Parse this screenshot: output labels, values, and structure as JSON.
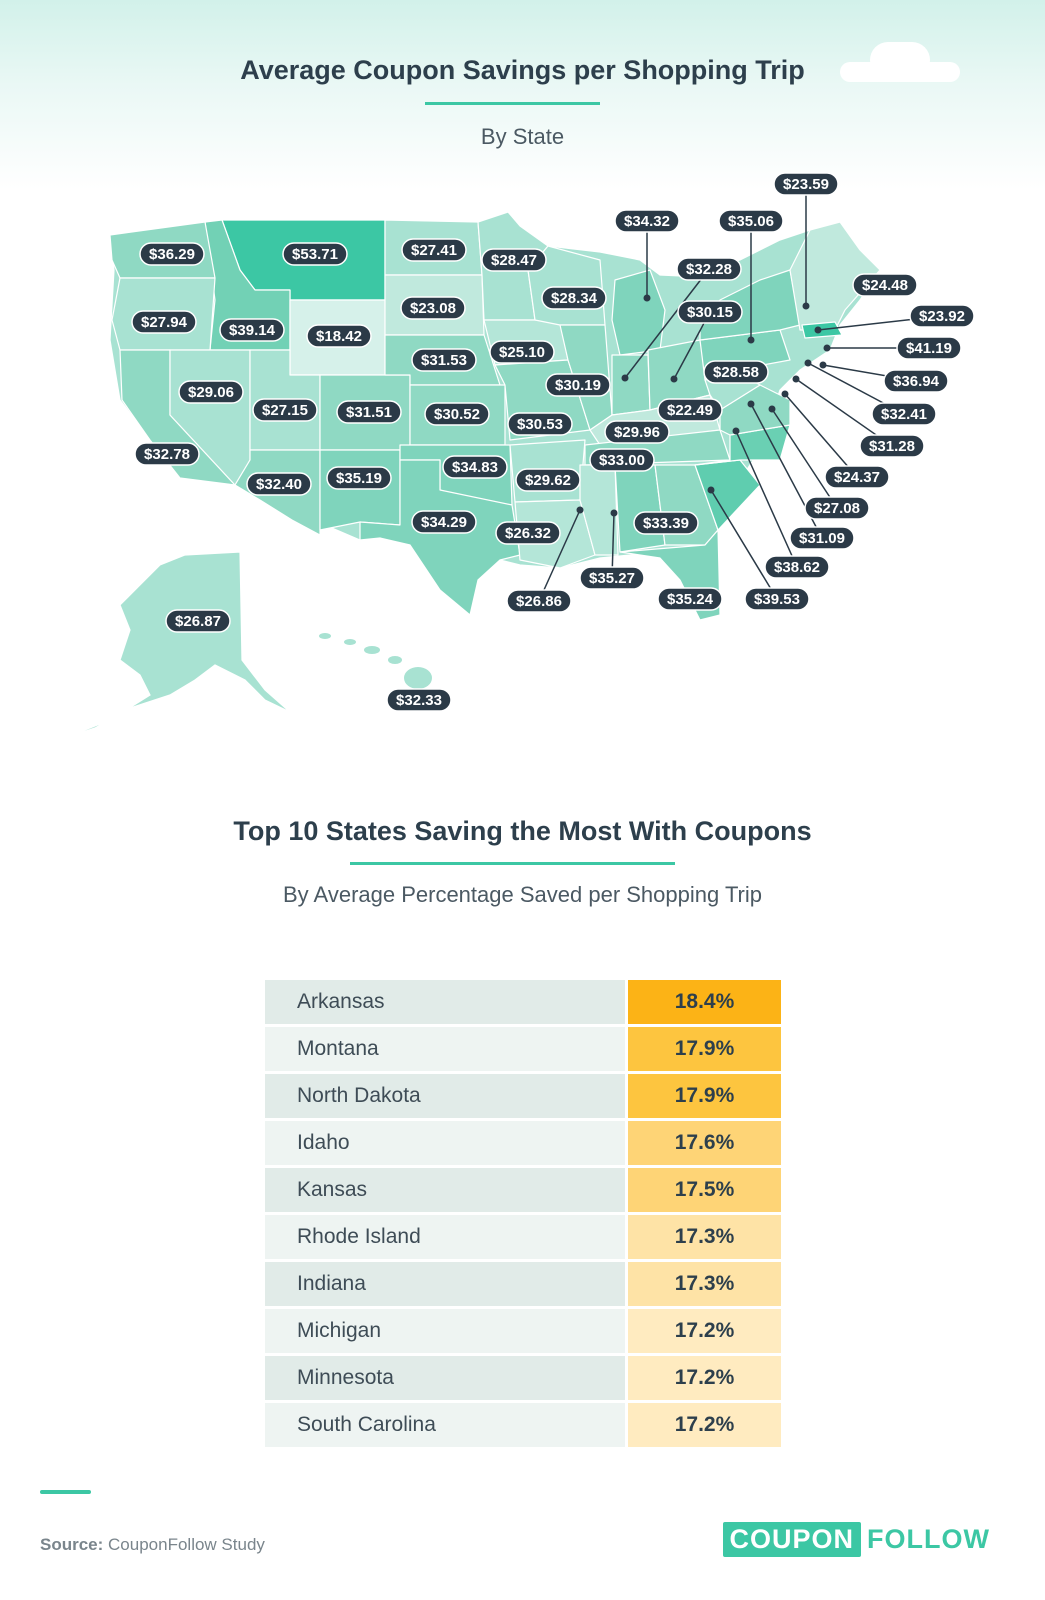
{
  "header": {
    "title": "Average Coupon Savings per Shopping Trip",
    "subtitle": "By State"
  },
  "map": {
    "colors": {
      "pill": "#2b3a47",
      "scale_low": "#d6f1ea",
      "scale_mid": "#8fd9c3",
      "scale_high": "#3cc7a4",
      "leader": "#2b3a47"
    },
    "labels": [
      {
        "state": "Washington",
        "value": "$36.29"
      },
      {
        "state": "Oregon",
        "value": "$27.94"
      },
      {
        "state": "California",
        "value": "$32.78"
      },
      {
        "state": "Nevada",
        "value": "$29.06"
      },
      {
        "state": "Idaho",
        "value": "$39.14"
      },
      {
        "state": "Montana",
        "value": "$53.71"
      },
      {
        "state": "Wyoming",
        "value": "$18.42"
      },
      {
        "state": "Utah",
        "value": "$27.15"
      },
      {
        "state": "Arizona",
        "value": "$32.40"
      },
      {
        "state": "Colorado",
        "value": "$31.51"
      },
      {
        "state": "New Mexico",
        "value": "$35.19"
      },
      {
        "state": "North Dakota",
        "value": "$27.41"
      },
      {
        "state": "South Dakota",
        "value": "$23.08"
      },
      {
        "state": "Nebraska",
        "value": "$31.53"
      },
      {
        "state": "Kansas",
        "value": "$30.52"
      },
      {
        "state": "Oklahoma",
        "value": "$34.83"
      },
      {
        "state": "Texas",
        "value": "$34.29"
      },
      {
        "state": "Minnesota",
        "value": "$28.47"
      },
      {
        "state": "Iowa",
        "value": "$25.10"
      },
      {
        "state": "Missouri",
        "value": "$30.53"
      },
      {
        "state": "Arkansas",
        "value": "$29.62"
      },
      {
        "state": "Louisiana",
        "value": "$26.32"
      },
      {
        "state": "Wisconsin",
        "value": "$28.34"
      },
      {
        "state": "Illinois",
        "value": "$30.19"
      },
      {
        "state": "Michigan",
        "value": "$34.32"
      },
      {
        "state": "Indiana",
        "value": "$32.28"
      },
      {
        "state": "Ohio",
        "value": "$30.15"
      },
      {
        "state": "Kentucky",
        "value": "$22.49"
      },
      {
        "state": "Tennessee",
        "value": "$29.96"
      },
      {
        "state": "Mississippi",
        "value": "$26.86"
      },
      {
        "state": "Alabama",
        "value": "$35.27"
      },
      {
        "state": "Georgia",
        "value": "$33.39"
      },
      {
        "state": "Florida",
        "value": "$35.24"
      },
      {
        "state": "South Carolina",
        "value": "$39.53"
      },
      {
        "state": "North Carolina",
        "value": "$38.62"
      },
      {
        "state": "Virginia",
        "value": "$31.09"
      },
      {
        "state": "West Virginia",
        "value": "$28.58"
      },
      {
        "state": "Pennsylvania",
        "value": "$33.00"
      },
      {
        "state": "New York",
        "value": "$35.06"
      },
      {
        "state": "Vermont",
        "value": "$23.59"
      },
      {
        "state": "Maine",
        "value": "$24.48"
      },
      {
        "state": "New Hampshire",
        "value": "$23.92"
      },
      {
        "state": "Massachusetts",
        "value": "$41.19"
      },
      {
        "state": "Rhode Island",
        "value": "$36.94"
      },
      {
        "state": "Connecticut",
        "value": "$32.41"
      },
      {
        "state": "New Jersey",
        "value": "$31.28"
      },
      {
        "state": "Delaware",
        "value": "$24.37"
      },
      {
        "state": "Maryland",
        "value": "$27.08"
      },
      {
        "state": "Alaska",
        "value": "$26.87"
      },
      {
        "state": "Hawaii",
        "value": "$32.33"
      }
    ]
  },
  "table": {
    "title": "Top 10 States Saving the Most With Coupons",
    "subtitle": "By Average Percentage Saved per Shopping Trip",
    "colors": {
      "row_dark": "#e1ebe8",
      "row_light": "#eef4f2",
      "pct_1": "#fcb316",
      "pct_2": "#fdc53f",
      "pct_3": "#fed476",
      "pct_4": "#fee3a6",
      "pct_5": "#ffebc0"
    },
    "rows": [
      {
        "state": "Arkansas",
        "percent": "18.4%"
      },
      {
        "state": "Montana",
        "percent": "17.9%"
      },
      {
        "state": "North Dakota",
        "percent": "17.9%"
      },
      {
        "state": "Idaho",
        "percent": "17.6%"
      },
      {
        "state": "Kansas",
        "percent": "17.5%"
      },
      {
        "state": "Rhode Island",
        "percent": "17.3%"
      },
      {
        "state": "Indiana",
        "percent": "17.3%"
      },
      {
        "state": "Michigan",
        "percent": "17.2%"
      },
      {
        "state": "Minnesota",
        "percent": "17.2%"
      },
      {
        "state": "South Carolina",
        "percent": "17.2%"
      }
    ]
  },
  "footer": {
    "source_label": "Source:",
    "source_text": "CouponFollow Study",
    "logo_box": "COUPON",
    "logo_rest": "FOLLOW"
  }
}
